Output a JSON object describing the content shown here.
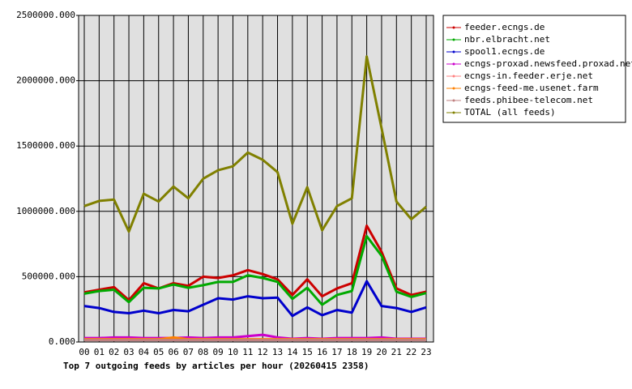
{
  "chart_data": {
    "type": "line",
    "title": "Top 7 outgoing feeds by articles per hour (20260415 2358)",
    "categories": [
      "00",
      "01",
      "02",
      "03",
      "04",
      "05",
      "06",
      "07",
      "08",
      "09",
      "10",
      "11",
      "12",
      "13",
      "14",
      "15",
      "16",
      "17",
      "18",
      "19",
      "20",
      "21",
      "22",
      "23"
    ],
    "ylim": [
      0,
      2500000
    ],
    "yticks": [
      {
        "value": 0,
        "label": "0.000"
      },
      {
        "value": 500000,
        "label": "500000.000"
      },
      {
        "value": 1000000,
        "label": "1000000.000"
      },
      {
        "value": 1500000,
        "label": "1500000.000"
      },
      {
        "value": 2000000,
        "label": "2000000.000"
      },
      {
        "value": 2500000,
        "label": "2500000.000"
      }
    ],
    "grid": true,
    "legend": "right",
    "series": [
      {
        "name": "feeder.ecngs.de",
        "color": "#cc0000",
        "values": [
          380000,
          400000,
          420000,
          320000,
          450000,
          410000,
          450000,
          430000,
          500000,
          490000,
          510000,
          550000,
          520000,
          480000,
          360000,
          480000,
          350000,
          410000,
          450000,
          890000,
          690000,
          410000,
          360000,
          385000
        ]
      },
      {
        "name": "nbr.elbracht.net",
        "color": "#00aa00",
        "values": [
          370000,
          390000,
          400000,
          305000,
          415000,
          410000,
          440000,
          415000,
          435000,
          460000,
          460000,
          510000,
          490000,
          460000,
          330000,
          415000,
          285000,
          360000,
          390000,
          810000,
          660000,
          385000,
          345000,
          375000
        ]
      },
      {
        "name": "spool1.ecngs.de",
        "color": "#0000cc",
        "values": [
          275000,
          260000,
          230000,
          220000,
          240000,
          220000,
          245000,
          235000,
          285000,
          335000,
          325000,
          350000,
          335000,
          340000,
          200000,
          265000,
          205000,
          245000,
          225000,
          465000,
          275000,
          260000,
          230000,
          265000
        ]
      },
      {
        "name": "ecngs-proxad.newsfeed.proxad.net",
        "color": "#cc00cc",
        "values": [
          30000,
          30000,
          35000,
          35000,
          30000,
          30000,
          30000,
          35000,
          30000,
          35000,
          35000,
          45000,
          55000,
          35000,
          25000,
          30000,
          25000,
          30000,
          30000,
          30000,
          35000,
          25000,
          25000,
          25000
        ]
      },
      {
        "name": "ecngs-in.feeder.erje.net",
        "color": "#ff8080",
        "values": [
          20000,
          20000,
          20000,
          20000,
          20000,
          20000,
          20000,
          20000,
          20000,
          20000,
          20000,
          20000,
          20000,
          20000,
          20000,
          20000,
          20000,
          20000,
          20000,
          20000,
          20000,
          20000,
          20000,
          20000
        ]
      },
      {
        "name": "ecngs-feed-me.usenet.farm",
        "color": "#ff8000",
        "values": [
          20000,
          20000,
          20000,
          20000,
          20000,
          20000,
          35000,
          20000,
          20000,
          20000,
          20000,
          20000,
          20000,
          20000,
          20000,
          20000,
          20000,
          20000,
          20000,
          20000,
          20000,
          20000,
          20000,
          20000
        ]
      },
      {
        "name": "feeds.phibee-telecom.net",
        "color": "#c08080",
        "values": [
          15000,
          15000,
          15000,
          15000,
          15000,
          15000,
          15000,
          15000,
          15000,
          15000,
          15000,
          15000,
          15000,
          15000,
          15000,
          15000,
          15000,
          15000,
          15000,
          15000,
          15000,
          15000,
          15000,
          15000
        ]
      },
      {
        "name": "TOTAL (all feeds)",
        "color": "#808000",
        "values": [
          1040000,
          1080000,
          1090000,
          845000,
          1135000,
          1075000,
          1190000,
          1100000,
          1250000,
          1315000,
          1345000,
          1450000,
          1395000,
          1300000,
          905000,
          1185000,
          855000,
          1040000,
          1100000,
          2185000,
          1635000,
          1075000,
          940000,
          1035000
        ]
      }
    ]
  }
}
